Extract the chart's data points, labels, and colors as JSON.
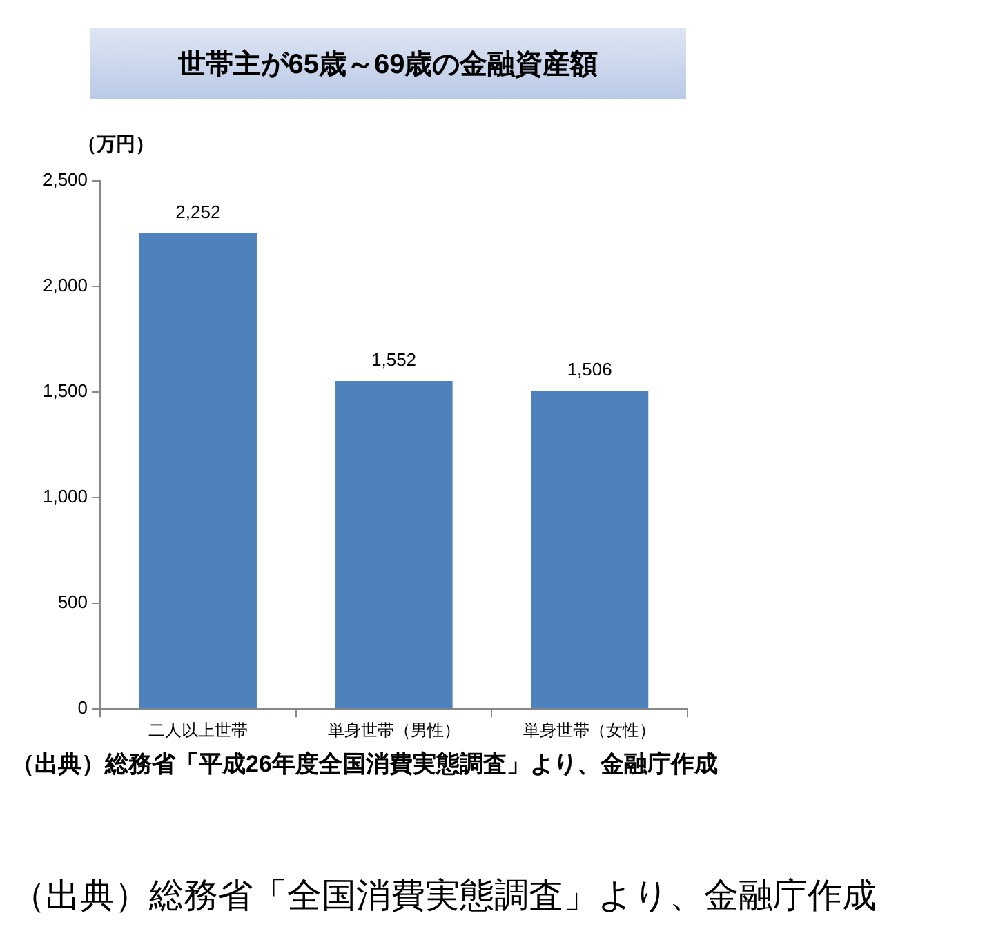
{
  "chart_data": {
    "type": "bar",
    "title": "世帯主が65歳～69歳の金融資産額",
    "ylabel": "（万円）",
    "categories": [
      "二人以上世帯",
      "単身世帯（男性）",
      "単身世帯（女性）"
    ],
    "values": [
      2252,
      1552,
      1506
    ],
    "color": "#4f81bd",
    "value_labels": [
      "2,252",
      "1,552",
      "1,506"
    ],
    "ylim": [
      0,
      2500
    ],
    "yticks": [
      {
        "value": 0,
        "label": "0"
      },
      {
        "value": 500,
        "label": "500"
      },
      {
        "value": 1000,
        "label": "1,000"
      },
      {
        "value": 1500,
        "label": "1,500"
      },
      {
        "value": 2000,
        "label": "2,000"
      },
      {
        "value": 2500,
        "label": "2,500"
      }
    ],
    "grid": false,
    "legend": false,
    "annotations": [
      "（出典）総務省「平成26年度全国消費実態調査」より、金融庁作成",
      "（出典）総務省「全国消費実態調査」より、金融庁作成"
    ]
  }
}
